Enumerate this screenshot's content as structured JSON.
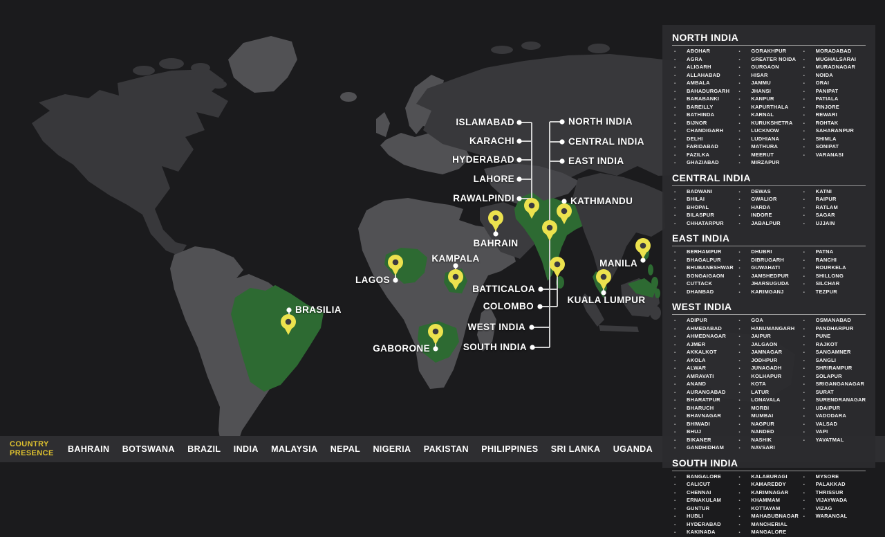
{
  "colors": {
    "background": "#1b1b1d",
    "panel_background": "#2b2b2e",
    "bar_background": "#2e2e31",
    "accent_yellow": "#dfc22f",
    "pin_yellow": "#ece24e",
    "highlight_green": "#2d6a32",
    "land_gray": "#515154",
    "label_white": "#ffffff"
  },
  "map": {
    "callouts": {
      "islamabad": "ISLAMABAD",
      "karachi": "KARACHI",
      "hyderabad": "HYDERABAD",
      "lahore": "LAHORE",
      "rawalpindi": "RAWALPINDI",
      "north_india": "NORTH INDIA",
      "central_india": "CENTRAL INDIA",
      "east_india": "EAST INDIA",
      "kathmandu": "KATHMANDU",
      "bahrain": "BAHRAIN",
      "kampala": "KAMPALA",
      "lagos": "LAGOS",
      "manila": "MANILA",
      "kuala_lumpur": "KUALA LUMPUR",
      "batticaloa": "BATTICALOA",
      "colombo": "COLOMBO",
      "west_india": "WEST INDIA",
      "south_india": "SOUTH INDIA",
      "brasilia": "BRASILIA",
      "gaborone": "GABORONE"
    },
    "pins": [
      "brasilia",
      "lagos",
      "kampala",
      "gaborone",
      "bahrain",
      "pakistan",
      "india",
      "nepal",
      "sri-lanka",
      "kuala-lumpur",
      "manila"
    ]
  },
  "regions_panel": {
    "sections": [
      {
        "title": "NORTH INDIA",
        "columns": [
          [
            "ABOHAR",
            "AGRA",
            "ALIGARH",
            "ALLAHABAD",
            "AMBALA",
            "BAHADURGARH",
            "BARABANKI",
            "BAREILLY",
            "BATHINDA",
            "BIJNOR",
            "CHANDIGARH",
            "DELHI",
            "FARIDABAD",
            "FAZILKA",
            "GHAZIABAD"
          ],
          [
            "GORAKHPUR",
            "GREATER NOIDA",
            "GURGAON",
            "HISAR",
            "JAMMU",
            "JHANSI",
            "KANPUR",
            "KAPURTHALA",
            "KARNAL",
            "KURUKSHETRA",
            "LUCKNOW",
            "LUDHIANA",
            "MATHURA",
            "MEERUT",
            "MIRZAPUR"
          ],
          [
            "MORADABAD",
            "MUGHALSARAI",
            "MURADNAGAR",
            "NOIDA",
            "ORAI",
            "PANIPAT",
            "PATIALA",
            "PINJORE",
            "REWARI",
            "ROHTAK",
            "SAHARANPUR",
            "SHIMLA",
            "SONIPAT",
            "VARANASI"
          ]
        ]
      },
      {
        "title": "CENTRAL INDIA",
        "columns": [
          [
            "BADWANI",
            "BHILAI",
            "BHOPAL",
            "BILASPUR",
            "CHHATARPUR"
          ],
          [
            "DEWAS",
            "GWALIOR",
            "HARDA",
            "INDORE",
            "JABALPUR"
          ],
          [
            "KATNI",
            "RAIPUR",
            "RATLAM",
            "SAGAR",
            "UJJAIN"
          ]
        ]
      },
      {
        "title": "EAST INDIA",
        "columns": [
          [
            "BERHAMPUR",
            "BHAGALPUR",
            "BHUBANESHWAR",
            "BONGAIGAON",
            "CUTTACK",
            "DHANBAD"
          ],
          [
            "DHUBRI",
            "DIBRUGARH",
            "GUWAHATI",
            "JAMSHEDPUR",
            "JHARSUGUDA",
            "KARIMGANJ"
          ],
          [
            "PATNA",
            "RANCHI",
            "ROURKELA",
            "SHILLONG",
            "SILCHAR",
            "TEZPUR"
          ]
        ]
      },
      {
        "title": "WEST INDIA",
        "columns": [
          [
            "ADIPUR",
            "AHMEDABAD",
            "AHMEDNAGAR",
            "AJMER",
            "AKKALKOT",
            "AKOLA",
            "ALWAR",
            "AMRAVATI",
            "ANAND",
            "AURANGABAD",
            "BHARATPUR",
            "BHARUCH",
            "BHAVNAGAR",
            "BHIWADI",
            "BHUJ",
            "BIKANER",
            "GANDHIDHAM"
          ],
          [
            "GOA",
            "HANUMANGARH",
            "JAIPUR",
            "JALGAON",
            "JAMNAGAR",
            "JODHPUR",
            "JUNAGADH",
            "KOLHAPUR",
            "KOTA",
            "LATUR",
            "LONAVALA",
            "MORBI",
            "MUMBAI",
            "NAGPUR",
            "NANDED",
            "NASHIK",
            "NAVSARI"
          ],
          [
            "OSMANABAD",
            "PANDHARPUR",
            "PUNE",
            "RAJKOT",
            "SANGAMNER",
            "SANGLI",
            "SHRIRAMPUR",
            "SOLAPUR",
            "SRIGANGANAGAR",
            "SURAT",
            "SURENDRANAGAR",
            "UDAIPUR",
            "VADODARA",
            "VALSAD",
            "VAPI",
            "YAVATMAL"
          ]
        ]
      },
      {
        "title": "SOUTH INDIA",
        "columns": [
          [
            "BANGALORE",
            "CALICUT",
            "CHENNAI",
            "ERNAKULAM",
            "GUNTUR",
            "HUBLI",
            "HYDERABAD",
            "KAKINADA"
          ],
          [
            "KALABURAGI",
            "KAMAREDDY",
            "KARIMNAGAR",
            "KHAMMAM",
            "KOTTAYAM",
            "MAHABUBNAGAR",
            "MANCHERIAL",
            "MANGALORE"
          ],
          [
            "MYSORE",
            "PALAKKAD",
            "THRISSUR",
            "VIJAYWADA",
            "VIZAG",
            "WARANGAL"
          ]
        ]
      }
    ]
  },
  "bottom_bar": {
    "title_line1": "COUNTRY",
    "title_line2": "PRESENCE",
    "countries": [
      "BAHRAIN",
      "BOTSWANA",
      "BRAZIL",
      "INDIA",
      "MALAYSIA",
      "NEPAL",
      "NIGERIA",
      "PAKISTAN",
      "PHILIPPINES",
      "SRI LANKA",
      "UGANDA"
    ]
  }
}
